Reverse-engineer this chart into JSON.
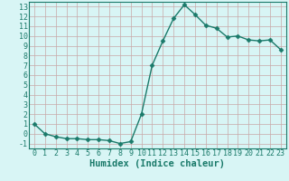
{
  "x": [
    0,
    1,
    2,
    3,
    4,
    5,
    6,
    7,
    8,
    9,
    10,
    11,
    12,
    13,
    14,
    15,
    16,
    17,
    18,
    19,
    20,
    21,
    22,
    23
  ],
  "y": [
    1,
    0,
    -0.3,
    -0.5,
    -0.5,
    -0.6,
    -0.6,
    -0.7,
    -1.0,
    -0.8,
    2.0,
    7.0,
    9.5,
    11.8,
    13.2,
    12.2,
    11.1,
    10.8,
    9.9,
    10.0,
    9.6,
    9.5,
    9.6,
    8.6
  ],
  "line_color": "#1a7a6a",
  "marker": "D",
  "marker_size": 2.5,
  "bg_color": "#d8f5f5",
  "grid_color": "#c8a8a8",
  "xlabel": "Humidex (Indice chaleur)",
  "tick_fontsize": 6,
  "xlabel_fontsize": 7.5,
  "xlim": [
    -0.5,
    23.5
  ],
  "ylim": [
    -1.5,
    13.5
  ],
  "yticks": [
    -1,
    0,
    1,
    2,
    3,
    4,
    5,
    6,
    7,
    8,
    9,
    10,
    11,
    12,
    13
  ],
  "xticks": [
    0,
    1,
    2,
    3,
    4,
    5,
    6,
    7,
    8,
    9,
    10,
    11,
    12,
    13,
    14,
    15,
    16,
    17,
    18,
    19,
    20,
    21,
    22,
    23
  ]
}
